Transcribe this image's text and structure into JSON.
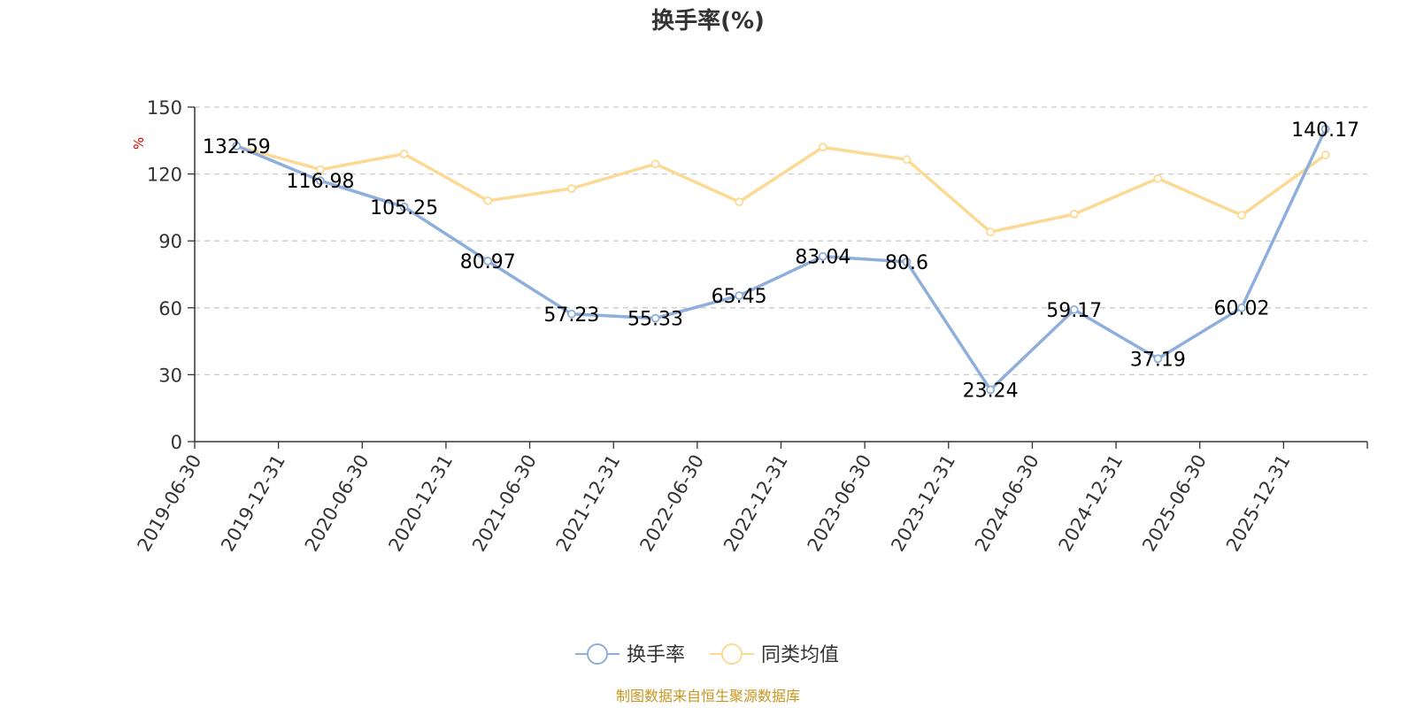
{
  "chart_data": {
    "type": "line",
    "title": "换手率(%)",
    "ylabel": "%",
    "xlabel": "",
    "ylim": [
      0,
      150
    ],
    "yticks": [
      0,
      30,
      60,
      90,
      120,
      150
    ],
    "grid": true,
    "categories": [
      "2019-06-30",
      "2019-12-31",
      "2020-06-30",
      "2020-12-31",
      "2021-06-30",
      "2021-12-31",
      "2022-06-30",
      "2022-12-31",
      "2023-06-30",
      "2023-12-31",
      "2024-06-30",
      "2024-12-31",
      "2025-06-30",
      "2025-12-31"
    ],
    "series": [
      {
        "name": "换手率",
        "color": "#8eaedb",
        "show_labels": true,
        "values": [
          132.59,
          116.98,
          105.25,
          80.97,
          57.23,
          55.33,
          65.45,
          83.04,
          80.6,
          23.24,
          59.17,
          37.19,
          60.02,
          140.17
        ]
      },
      {
        "name": "同类均值",
        "color": "#fcd995",
        "show_labels": false,
        "values": [
          132.5,
          122.0,
          129.0,
          108.0,
          113.5,
          124.5,
          107.5,
          132.0,
          126.5,
          94.0,
          102.0,
          118.0,
          101.5,
          128.5
        ]
      }
    ],
    "legend_position": "bottom-center",
    "source_note": "制图数据来自恒生聚源数据库"
  },
  "colors": {
    "axis": "#333333",
    "grid": "#cccccc",
    "unit": "#e00000",
    "source": "#c8961e"
  }
}
